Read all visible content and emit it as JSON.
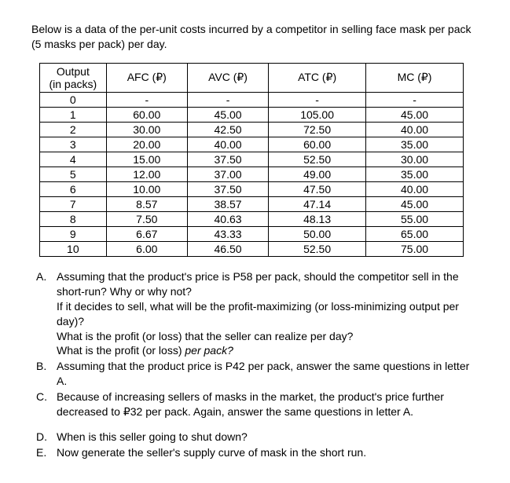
{
  "intro": "Below is a data of the per-unit costs incurred by a competitor in selling face mask per pack (5 masks per pack) per day.",
  "table": {
    "headers": {
      "output_l1": "Output",
      "output_l2": "(in packs)",
      "afc": "AFC (₽)",
      "avc": "AVC (₽)",
      "atc": "ATC (₽)",
      "mc": "MC (₽)"
    },
    "rows": [
      {
        "out": "0",
        "afc": "-",
        "avc": "-",
        "atc": "-",
        "mc": "-"
      },
      {
        "out": "1",
        "afc": "60.00",
        "avc": "45.00",
        "atc": "105.00",
        "mc": "45.00"
      },
      {
        "out": "2",
        "afc": "30.00",
        "avc": "42.50",
        "atc": "72.50",
        "mc": "40.00"
      },
      {
        "out": "3",
        "afc": "20.00",
        "avc": "40.00",
        "atc": "60.00",
        "mc": "35.00"
      },
      {
        "out": "4",
        "afc": "15.00",
        "avc": "37.50",
        "atc": "52.50",
        "mc": "30.00"
      },
      {
        "out": "5",
        "afc": "12.00",
        "avc": "37.00",
        "atc": "49.00",
        "mc": "35.00"
      },
      {
        "out": "6",
        "afc": "10.00",
        "avc": "37.50",
        "atc": "47.50",
        "mc": "40.00"
      },
      {
        "out": "7",
        "afc": "8.57",
        "avc": "38.57",
        "atc": "47.14",
        "mc": "45.00"
      },
      {
        "out": "8",
        "afc": "7.50",
        "avc": "40.63",
        "atc": "48.13",
        "mc": "55.00"
      },
      {
        "out": "9",
        "afc": "6.67",
        "avc": "43.33",
        "atc": "50.00",
        "mc": "65.00"
      },
      {
        "out": "10",
        "afc": "6.00",
        "avc": "46.50",
        "atc": "52.50",
        "mc": "75.00"
      }
    ]
  },
  "questions": {
    "a": {
      "letter": "A.",
      "l1": "Assuming that the product's price is P58 per pack, should the competitor sell in the short-run? Why or why not?",
      "l2": "If it decides to sell, what will be the profit-maximizing (or loss-minimizing output per day)?",
      "l3": "What is the profit (or loss) that the seller can realize per day?",
      "l4": "What is the profit (or loss) per pack?"
    },
    "b": {
      "letter": "B.",
      "l1": "Assuming that the product price is P42 per pack, answer the same questions in letter A."
    },
    "c": {
      "letter": "C.",
      "l1": "Because of increasing sellers of masks in the market, the product's price further decreased to ₽32 per pack. Again, answer the same questions in letter A."
    },
    "d": {
      "letter": "D.",
      "l1": "When is this seller going to shut down?"
    },
    "e": {
      "letter": "E.",
      "l1": "Now generate the seller's supply curve of mask in the short run."
    }
  }
}
